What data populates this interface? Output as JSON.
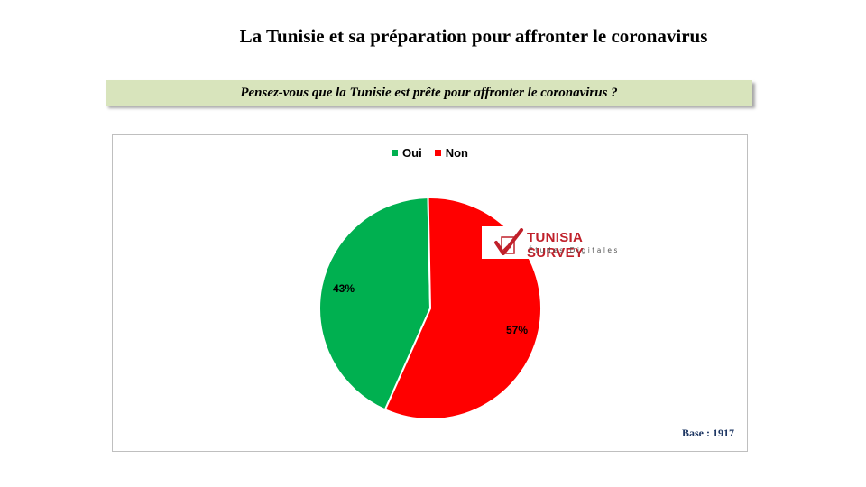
{
  "title": "La Tunisie et sa préparation pour affronter le coronavirus",
  "question": "Pensez-vous que la Tunisie est prête pour affronter le coronavirus ?",
  "base": "Base :  1917",
  "logo": {
    "name": "TUNISIA SURVEY",
    "tagline": "Études Digitales"
  },
  "chart_data": {
    "type": "pie",
    "categories": [
      "Oui",
      "Non"
    ],
    "values": [
      43,
      57
    ],
    "labels": [
      "43%",
      "57%"
    ],
    "colors": [
      "#00b050",
      "#ff0000"
    ],
    "legend_position": "top-center"
  }
}
